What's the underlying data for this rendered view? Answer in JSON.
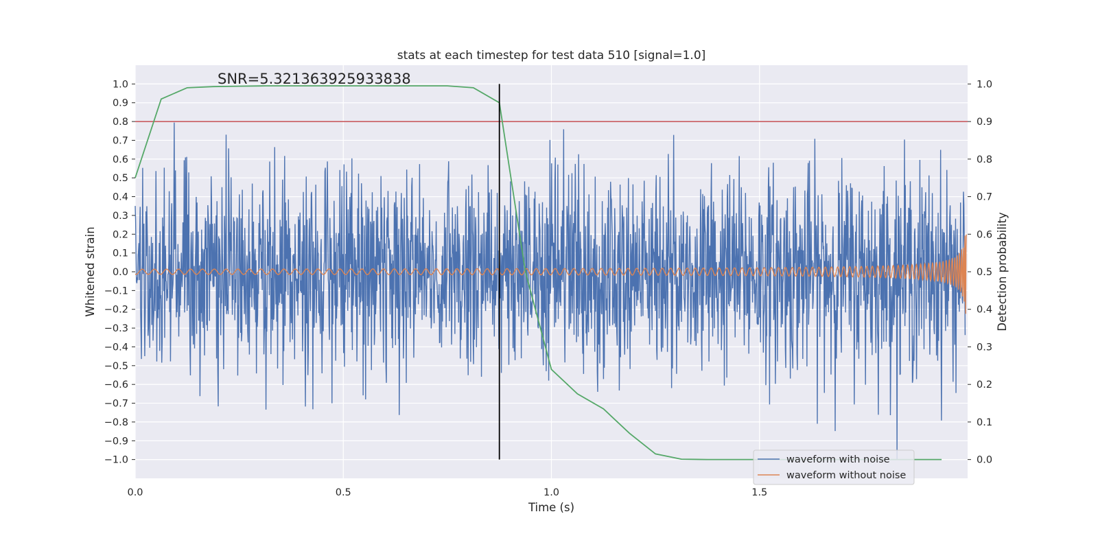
{
  "chart_data": {
    "type": "line",
    "title": "stats at each timestep for test data 510 [signal=1.0]",
    "xlabel": "Time (s)",
    "ylabel": "Whitened strain",
    "y2label": "Detection probability",
    "annotation": "SNR=5.321363925933838",
    "xlim": [
      0.0,
      2.0
    ],
    "ylim": [
      -1.1,
      1.1
    ],
    "y2lim": [
      -0.05,
      1.05
    ],
    "xticks": [
      0.0,
      0.5,
      1.0,
      1.5
    ],
    "xtick_labels": [
      "0.0",
      "0.5",
      "1.0",
      "1.5"
    ],
    "yticks": [
      -1.0,
      -0.9,
      -0.8,
      -0.7,
      -0.6,
      -0.5,
      -0.4,
      -0.3,
      -0.2,
      -0.1,
      0.0,
      0.1,
      0.2,
      0.3,
      0.4,
      0.5,
      0.6,
      0.7,
      0.8,
      0.9,
      1.0
    ],
    "ytick_labels": [
      "−1.0",
      "−0.9",
      "−0.8",
      "−0.7",
      "−0.6",
      "−0.5",
      "−0.4",
      "−0.3",
      "−0.2",
      "−0.1",
      "0.0",
      "0.1",
      "0.2",
      "0.3",
      "0.4",
      "0.5",
      "0.6",
      "0.7",
      "0.8",
      "0.9",
      "1.0"
    ],
    "y2ticks": [
      0.0,
      0.1,
      0.2,
      0.3,
      0.4,
      0.5,
      0.6,
      0.7,
      0.8,
      0.9,
      1.0
    ],
    "y2tick_labels": [
      "0.0",
      "0.1",
      "0.2",
      "0.3",
      "0.4",
      "0.5",
      "0.6",
      "0.7",
      "0.8",
      "0.9",
      "1.0"
    ],
    "grid": true,
    "legend": {
      "position": "lower-right",
      "entries": [
        "waveform with noise",
        "waveform without noise"
      ]
    },
    "series": [
      {
        "name": "waveform with noise",
        "color": "#4c72b0",
        "axis": "left",
        "n_samples": 2000,
        "amplitude_std": 0.27,
        "min": -1.0,
        "max": 0.98
      },
      {
        "name": "waveform without noise",
        "color": "#dd8452",
        "axis": "left",
        "kind": "chirp",
        "start_amplitude": 0.008,
        "end_amplitude": 0.3
      },
      {
        "name": "detection probability",
        "color": "#55a868",
        "axis": "right",
        "x": [
          0.0,
          0.0625,
          0.125,
          0.1875,
          0.25,
          0.3125,
          0.375,
          0.4375,
          0.5,
          0.5625,
          0.625,
          0.6875,
          0.75,
          0.8125,
          0.875,
          0.9375,
          1.0,
          1.0625,
          1.125,
          1.1875,
          1.25,
          1.3125,
          1.375,
          1.4375,
          1.5,
          1.5625,
          1.625,
          1.6875,
          1.75,
          1.8125,
          1.875,
          1.9375
        ],
        "y": [
          0.75,
          0.96,
          0.99,
          0.993,
          0.994,
          0.995,
          0.995,
          0.995,
          0.995,
          0.995,
          0.995,
          0.995,
          0.995,
          0.99,
          0.95,
          0.5,
          0.24,
          0.175,
          0.135,
          0.07,
          0.015,
          0.001,
          0.0,
          0.0,
          0.0,
          0.0,
          0.0,
          0.0,
          0.0,
          0.0,
          0.0,
          0.0
        ]
      }
    ],
    "threshold": {
      "axis": "right",
      "y": 0.9,
      "color": "#c44e52"
    },
    "marker": {
      "x": 0.875,
      "y2_range": [
        0.0,
        1.0
      ],
      "color": "#000000"
    }
  }
}
